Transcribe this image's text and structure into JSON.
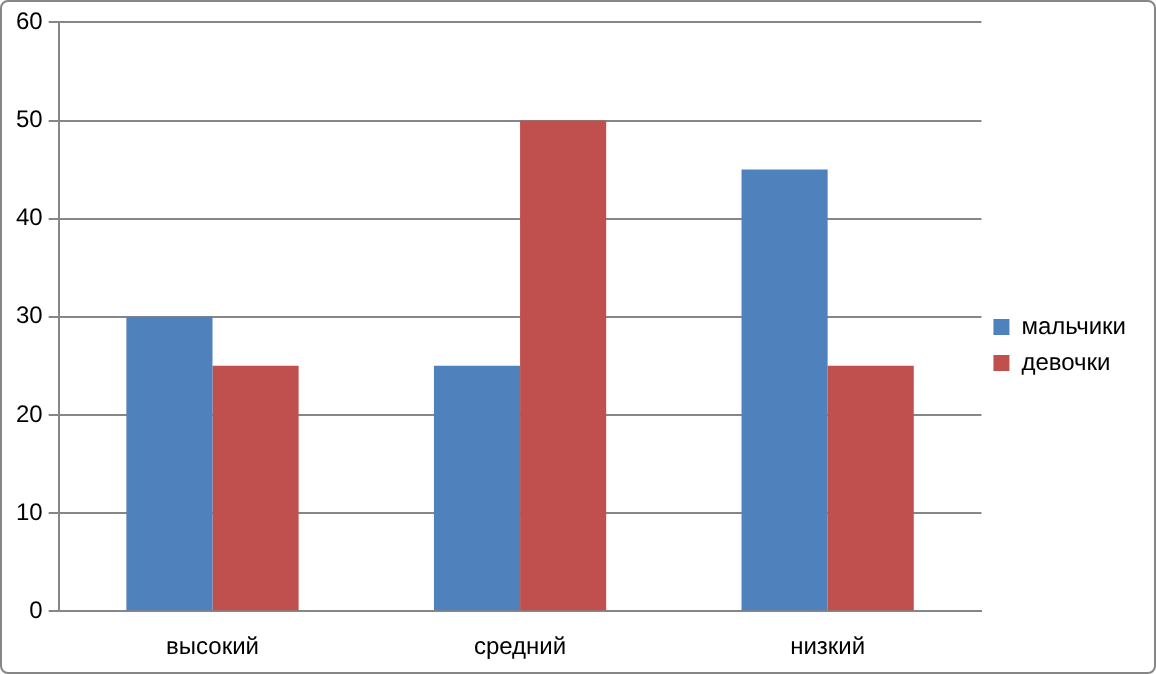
{
  "chart_data": {
    "type": "bar",
    "categories": [
      "высокий",
      "средний",
      "низкий"
    ],
    "series": [
      {
        "name": "мальчики",
        "color": "#4f81bd",
        "values": [
          30,
          25,
          45
        ]
      },
      {
        "name": "девочки",
        "color": "#c0504d",
        "values": [
          25,
          50,
          25
        ]
      }
    ],
    "ylim": [
      0,
      60
    ],
    "yticks": [
      0,
      10,
      20,
      30,
      40,
      50,
      60
    ],
    "grid": "y",
    "legend": "right"
  }
}
